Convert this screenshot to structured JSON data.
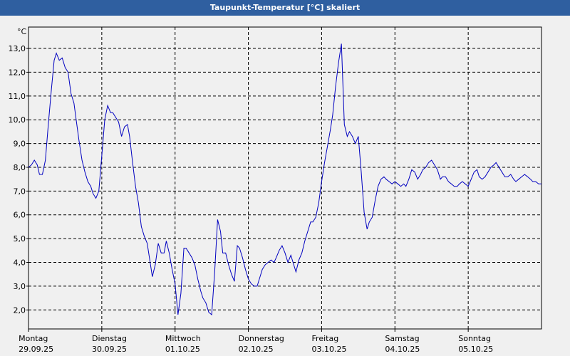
{
  "window": {
    "title": "Taupunkt-Temperatur [°C] skaliert"
  },
  "colors": {
    "titlebar": "#2f5fa0",
    "plot_bg": "#f0f0f0",
    "line": "#0000c0",
    "grid": "#000000"
  },
  "chart_data": {
    "type": "line",
    "title": "Taupunkt-Temperatur [°C] skaliert",
    "ylabel": "°C",
    "xlabel": "",
    "ylim": [
      1.2,
      13.9
    ],
    "xlim": [
      0,
      7
    ],
    "grid": true,
    "yticks": [
      2.0,
      3.0,
      4.0,
      5.0,
      6.0,
      7.0,
      8.0,
      9.0,
      10.0,
      11.0,
      12.0,
      13.0
    ],
    "ytick_labels": [
      "2,0",
      "3,0",
      "4,0",
      "5,0",
      "6,0",
      "7,0",
      "8,0",
      "9,0",
      "10,0",
      "11,0",
      "12,0",
      "13,0"
    ],
    "xticks": [
      {
        "day": "Montag",
        "date": "29.09.25"
      },
      {
        "day": "Dienstag",
        "date": "30.09.25"
      },
      {
        "day": "Mittwoch",
        "date": "01.10.25"
      },
      {
        "day": "Donnerstag",
        "date": "02.10.25"
      },
      {
        "day": "Freitag",
        "date": "03.10.25"
      },
      {
        "day": "Samstag",
        "date": "04.10.25"
      },
      {
        "day": "Sonntag",
        "date": "05.10.25"
      }
    ],
    "series": [
      {
        "x": [
          0.0,
          0.04,
          0.08,
          0.12,
          0.15,
          0.19,
          0.23,
          0.27,
          0.31,
          0.35,
          0.38,
          0.42,
          0.46,
          0.5,
          0.54,
          0.58,
          0.62,
          0.65,
          0.69,
          0.73,
          0.77,
          0.81,
          0.85,
          0.88,
          0.92,
          0.96,
          1.0,
          1.04,
          1.08,
          1.12,
          1.15,
          1.19,
          1.23,
          1.27,
          1.31,
          1.35,
          1.38,
          1.42,
          1.46,
          1.5,
          1.54,
          1.58,
          1.62,
          1.65,
          1.69,
          1.73,
          1.77,
          1.81,
          1.85,
          1.88,
          1.92,
          1.96,
          2.0,
          2.04,
          2.08,
          2.12,
          2.15,
          2.19,
          2.23,
          2.27,
          2.31,
          2.35,
          2.38,
          2.42,
          2.46,
          2.5,
          2.54,
          2.58,
          2.62,
          2.65,
          2.69,
          2.73,
          2.77,
          2.81,
          2.85,
          2.88,
          2.92,
          2.96,
          3.0,
          3.04,
          3.08,
          3.12,
          3.15,
          3.19,
          3.23,
          3.27,
          3.31,
          3.35,
          3.38,
          3.42,
          3.46,
          3.5,
          3.54,
          3.58,
          3.62,
          3.65,
          3.69,
          3.73,
          3.77,
          3.81,
          3.85,
          3.88,
          3.92,
          3.96,
          4.0,
          4.04,
          4.08,
          4.12,
          4.15,
          4.19,
          4.23,
          4.27,
          4.31,
          4.35,
          4.38,
          4.42,
          4.46,
          4.5,
          4.54,
          4.58,
          4.62,
          4.65,
          4.69,
          4.73,
          4.77,
          4.81,
          4.85,
          4.88,
          4.92,
          4.96,
          5.0,
          5.04,
          5.08,
          5.12,
          5.15,
          5.19,
          5.23,
          5.27,
          5.31,
          5.35,
          5.38,
          5.42,
          5.46,
          5.5,
          5.54,
          5.58,
          5.62,
          5.65,
          5.69,
          5.73,
          5.77,
          5.81,
          5.85,
          5.88,
          5.92,
          5.96,
          6.0,
          6.04,
          6.08,
          6.12,
          6.15,
          6.19,
          6.23,
          6.27,
          6.31,
          6.35,
          6.38,
          6.42,
          6.46,
          6.5,
          6.54,
          6.58,
          6.62,
          6.65,
          6.69,
          6.73,
          6.77,
          6.81,
          6.85,
          6.88,
          6.92,
          6.96,
          7.0
        ],
        "y": [
          8.0,
          8.1,
          8.3,
          8.1,
          7.7,
          7.7,
          8.3,
          9.8,
          11.2,
          12.5,
          12.8,
          12.5,
          12.6,
          12.2,
          12.0,
          11.1,
          10.7,
          10.0,
          9.1,
          8.3,
          7.8,
          7.4,
          7.2,
          6.9,
          6.7,
          7.0,
          8.5,
          10.0,
          10.6,
          10.3,
          10.3,
          10.1,
          9.9,
          9.3,
          9.7,
          9.8,
          9.3,
          8.2,
          7.2,
          6.5,
          5.5,
          5.1,
          4.8,
          4.2,
          3.4,
          3.9,
          4.8,
          4.4,
          4.4,
          4.9,
          4.4,
          3.7,
          3.1,
          1.8,
          2.7,
          4.6,
          4.6,
          4.4,
          4.2,
          3.9,
          3.3,
          2.8,
          2.5,
          2.3,
          1.9,
          1.8,
          3.6,
          5.8,
          5.3,
          4.4,
          4.4,
          3.9,
          3.5,
          3.2,
          4.7,
          4.6,
          4.2,
          3.7,
          3.3,
          3.1,
          3.0,
          3.0,
          3.3,
          3.7,
          3.9,
          4.0,
          4.1,
          4.0,
          4.2,
          4.5,
          4.7,
          4.4,
          4.0,
          4.3,
          3.9,
          3.6,
          4.1,
          4.4,
          4.9,
          5.3,
          5.7,
          5.7,
          5.9,
          6.5,
          7.4,
          8.2,
          8.9,
          9.6,
          10.2,
          11.4,
          12.4,
          13.2,
          9.8,
          9.3,
          9.5,
          9.3,
          9.0,
          9.3,
          7.8,
          6.1,
          5.4,
          5.7,
          5.9,
          6.6,
          7.2,
          7.5,
          7.6,
          7.5,
          7.4,
          7.3,
          7.4,
          7.3,
          7.2,
          7.3,
          7.2,
          7.5,
          7.9,
          7.8,
          7.5,
          7.7,
          7.9,
          8.0,
          8.2,
          8.3,
          8.1,
          7.9,
          7.5,
          7.6,
          7.6,
          7.4,
          7.3,
          7.2,
          7.2,
          7.3,
          7.4,
          7.3,
          7.2,
          7.5,
          7.8,
          7.9,
          7.6,
          7.5,
          7.6,
          7.8,
          8.0,
          8.1,
          8.2,
          8.0,
          7.8,
          7.6,
          7.6,
          7.7,
          7.5,
          7.4,
          7.5,
          7.6,
          7.7,
          7.6,
          7.5,
          7.4,
          7.4,
          7.3,
          7.3
        ]
      }
    ]
  }
}
